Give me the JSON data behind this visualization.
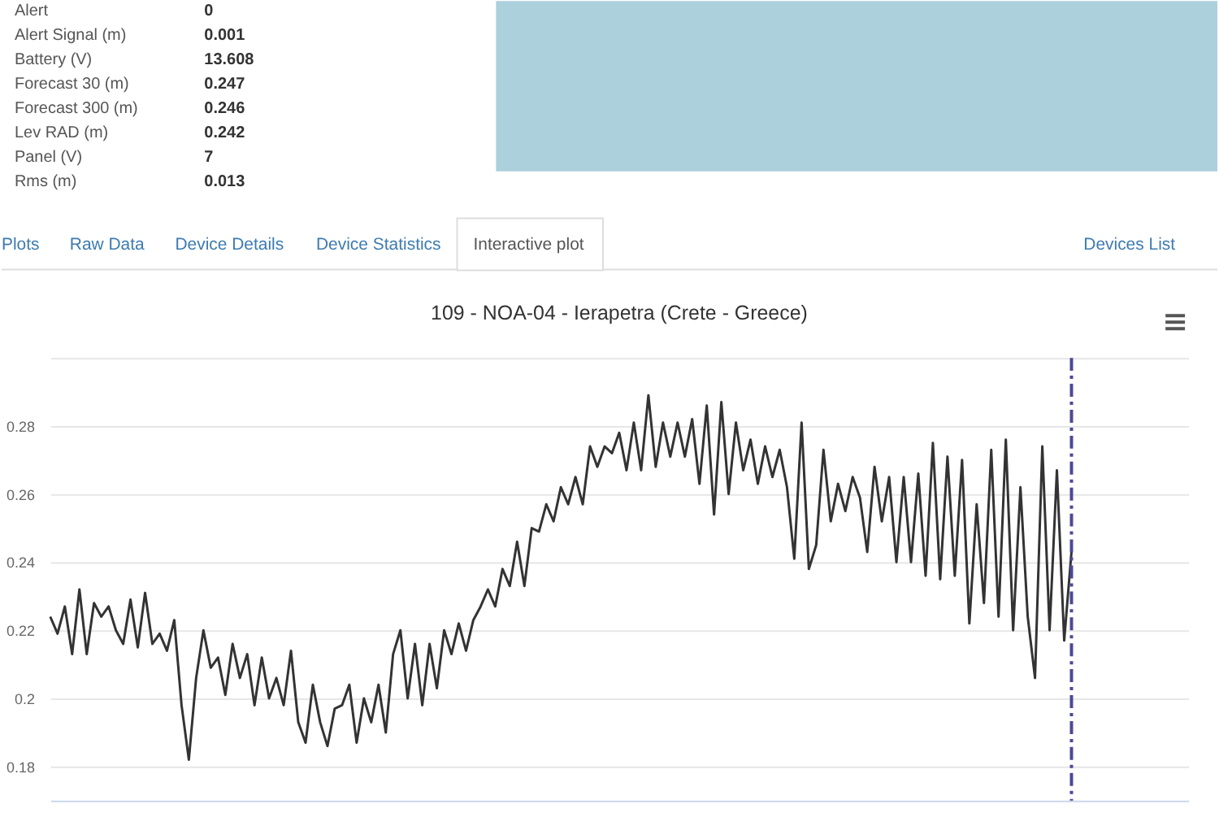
{
  "chart_data": [
    {
      "type": "other",
      "categories": [
        "Alert",
        "Alert Signal (m)",
        "Battery (V)",
        "Forecast 30 (m)",
        "Forecast 300 (m)",
        "Lev RAD (m)",
        "Panel (V)",
        "Rms (m)"
      ],
      "values": [
        0,
        0.001,
        13.608,
        0.247,
        0.246,
        0.242,
        7,
        0.013
      ],
      "data_labels": true,
      "annotations": [
        "Plots",
        "Raw Data",
        "Device Details",
        "Device Statistics",
        "Interactive plot",
        "Devices List"
      ]
    },
    {
      "type": "line",
      "title": "109 - NOA-04 - Ierapetra (Crete - Greece)",
      "categories": [
        null,
        null,
        null,
        null,
        null,
        null,
        null,
        null,
        null,
        null,
        null,
        null,
        null,
        null,
        null,
        null,
        null,
        null,
        null,
        null,
        null,
        null,
        null,
        null,
        null,
        null,
        null,
        null,
        null,
        null,
        null,
        null,
        null,
        null,
        null,
        null,
        null,
        null,
        null,
        null,
        null,
        null,
        null,
        null,
        null,
        null,
        null,
        null,
        null,
        null,
        null,
        null,
        null,
        null,
        null,
        null,
        null,
        null,
        null,
        null,
        null,
        null,
        null,
        null,
        null,
        null,
        null,
        null,
        null,
        null,
        null,
        null,
        null,
        null,
        null,
        null,
        null,
        null,
        null,
        null,
        null,
        null,
        null,
        null,
        null,
        null,
        null,
        null,
        null,
        null,
        null,
        null,
        null,
        null,
        null,
        null,
        null,
        null,
        null,
        null,
        null,
        null,
        null,
        null,
        null,
        null,
        null,
        null,
        null,
        null,
        null,
        null,
        null,
        null,
        null,
        null,
        null,
        null,
        null,
        null,
        null,
        null,
        null,
        null,
        null,
        null,
        null,
        null,
        null,
        null,
        null,
        null,
        null,
        null,
        null,
        null,
        null,
        null,
        null,
        null,
        null,
        null,
        null,
        null,
        null,
        null,
        null,
        null,
        null,
        null,
        null,
        null,
        null,
        null,
        null,
        null,
        null
      ],
      "series": [
        {
          "color": "#333333",
          "values": [
            0.224,
            0.219,
            0.227,
            0.213,
            0.232,
            0.213,
            0.228,
            0.224,
            0.227,
            0.22,
            0.216,
            0.229,
            0.215,
            0.231,
            0.216,
            0.219,
            0.214,
            0.223,
            0.198,
            0.182,
            0.206,
            0.22,
            0.209,
            0.212,
            0.201,
            0.216,
            0.206,
            0.213,
            0.198,
            0.212,
            0.2,
            0.206,
            0.198,
            0.214,
            0.193,
            0.187,
            0.204,
            0.193,
            0.186,
            0.197,
            0.198,
            0.204,
            0.187,
            0.2,
            0.193,
            0.204,
            0.19,
            0.213,
            0.22,
            0.2,
            0.216,
            0.198,
            0.216,
            0.203,
            0.22,
            0.213,
            0.222,
            0.214,
            0.223,
            0.227,
            0.232,
            0.227,
            0.238,
            0.233,
            0.246,
            0.233,
            0.25,
            0.249,
            0.257,
            0.252,
            0.262,
            0.257,
            0.265,
            0.257,
            0.274,
            0.268,
            0.274,
            0.272,
            0.278,
            0.267,
            0.281,
            0.267,
            0.289,
            0.268,
            0.281,
            0.271,
            0.281,
            0.271,
            0.282,
            0.263,
            0.286,
            0.254,
            0.287,
            0.26,
            0.281,
            0.267,
            0.276,
            0.263,
            0.274,
            0.265,
            0.273,
            0.262,
            0.241,
            0.281,
            0.238,
            0.245,
            0.273,
            0.252,
            0.263,
            0.255,
            0.265,
            0.259,
            0.243,
            0.268,
            0.252,
            0.265,
            0.24,
            0.265,
            0.24,
            0.266,
            0.236,
            0.275,
            0.235,
            0.271,
            0.236,
            0.27,
            0.222,
            0.257,
            0.228,
            0.273,
            0.224,
            0.276,
            0.22,
            0.262,
            0.224,
            0.206,
            0.274,
            0.22,
            0.267,
            0.217,
            0.243,
            null,
            null,
            null,
            null,
            null,
            null,
            null,
            null,
            null,
            null,
            null,
            null,
            null,
            null,
            null,
            null
          ]
        }
      ],
      "ylim": [
        0.17,
        0.3
      ],
      "yticks": [
        0.18,
        0.2,
        0.22,
        0.24,
        0.26,
        0.28,
        {
          "value": 0.3,
          "label": null
        }
      ],
      "grid": "y",
      "tick_labels": "y"
    }
  ]
}
